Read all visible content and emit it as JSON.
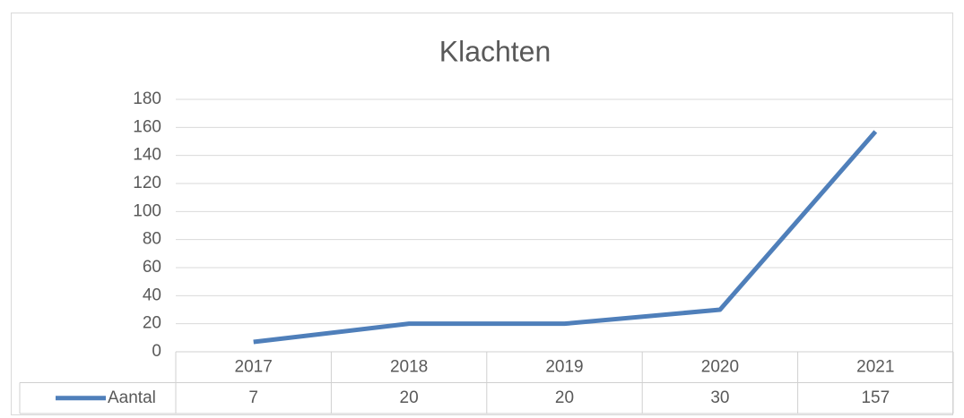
{
  "chart_data": {
    "type": "line",
    "title": "Klachten",
    "categories": [
      "2017",
      "2018",
      "2019",
      "2020",
      "2021"
    ],
    "series": [
      {
        "name": "Aantal",
        "color": "#4f7fba",
        "values": [
          7,
          20,
          20,
          30,
          157
        ]
      }
    ],
    "ylim": [
      0,
      180
    ],
    "yticks": [
      0,
      20,
      40,
      60,
      80,
      100,
      120,
      140,
      160,
      180
    ],
    "grid": true,
    "data_table": true
  }
}
